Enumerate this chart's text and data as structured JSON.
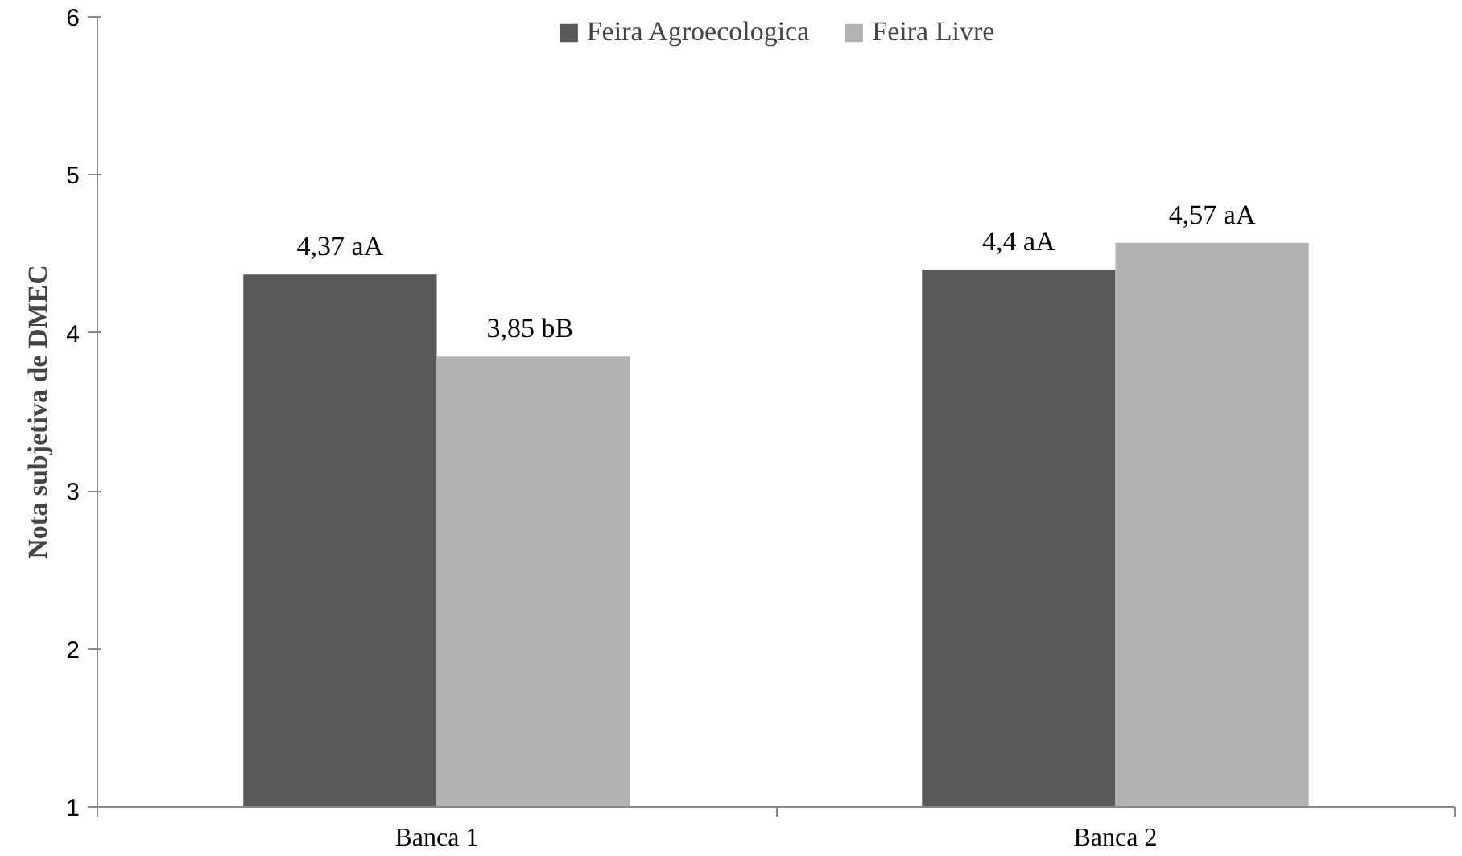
{
  "chart_data": {
    "type": "bar",
    "ylabel": "Nota subjetiva de DMEC",
    "categories": [
      "Banca 1",
      "Banca 2"
    ],
    "series": [
      {
        "name": "Feira Agroecologica",
        "color": "#595959",
        "values": [
          4.37,
          4.4
        ],
        "value_labels": [
          "4,37 aA",
          "4,4 aA"
        ]
      },
      {
        "name": "Feira Livre",
        "color": "#b2b2b2",
        "values": [
          3.85,
          4.57
        ],
        "value_labels": [
          "3,85  bB",
          "4,57 aA"
        ]
      }
    ],
    "ylim": [
      1,
      6
    ],
    "yticks": [
      1,
      2,
      3,
      4,
      5,
      6
    ],
    "grid": false,
    "legend": "top"
  }
}
